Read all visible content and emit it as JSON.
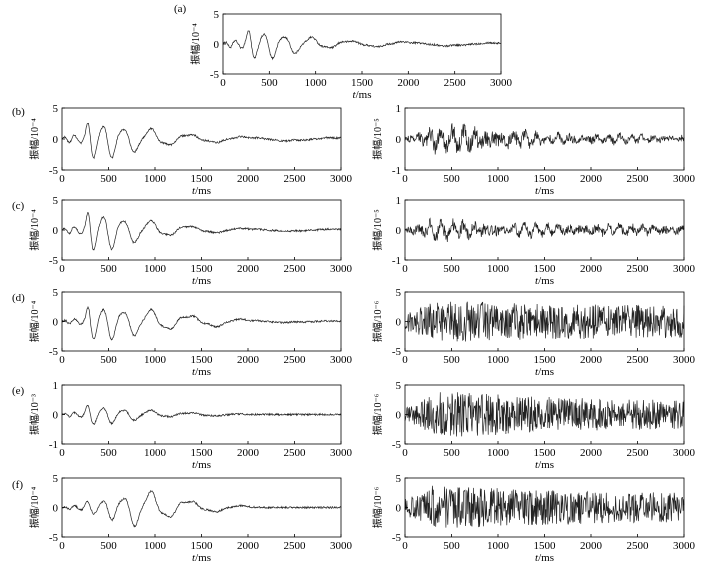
{
  "figure": {
    "panel_labels": [
      "(a)",
      "(b)",
      "(c)",
      "(d)",
      "(e)",
      "(f)"
    ]
  },
  "chart_data": [
    {
      "id": "a",
      "type": "line",
      "panel_label": "(a)",
      "xlabel": "t/ms",
      "ylabel": "振幅/10⁻⁴",
      "xlim": [
        0,
        3000
      ],
      "ylim": [
        -5,
        5
      ],
      "xticks": [
        0,
        500,
        1000,
        1500,
        2000,
        2500,
        3000
      ],
      "yticks": [
        -5,
        0,
        5
      ],
      "series": [
        {
          "signal": "decaying oscillation",
          "x": [
            0,
            250,
            300,
            350,
            400,
            500,
            600,
            700,
            800,
            1000,
            1200,
            1500,
            1800,
            2000,
            2500,
            3000
          ],
          "amplitude": [
            0.2,
            1.5,
            3.2,
            3.0,
            2.8,
            2.5,
            2.3,
            2.0,
            1.6,
            1.2,
            0.9,
            0.6,
            0.45,
            0.4,
            0.35,
            0.3
          ]
        }
      ]
    },
    {
      "id": "b-left",
      "type": "line",
      "panel_label": "(b)",
      "xlabel": "t/ms",
      "ylabel": "振幅/10⁻⁴",
      "xlim": [
        0,
        3000
      ],
      "ylim": [
        -5,
        5
      ],
      "xticks": [
        0,
        500,
        1000,
        1500,
        2000,
        2500,
        3000
      ],
      "yticks": [
        -5,
        0,
        5
      ],
      "series": [
        {
          "signal": "decaying oscillation",
          "x": [
            0,
            250,
            300,
            350,
            400,
            500,
            600,
            700,
            800,
            1000,
            1200,
            1500,
            1800,
            2000,
            2500,
            3000
          ],
          "amplitude": [
            0.2,
            1.5,
            4.0,
            3.8,
            3.5,
            3.2,
            3.0,
            2.6,
            2.2,
            1.8,
            1.3,
            0.8,
            0.5,
            0.4,
            0.35,
            0.3
          ]
        }
      ]
    },
    {
      "id": "b-right",
      "type": "line",
      "panel_label": "",
      "xlabel": "t/ms",
      "ylabel": "振幅/10⁻⁵",
      "xlim": [
        0,
        3000
      ],
      "ylim": [
        -1,
        1
      ],
      "xticks": [
        0,
        500,
        1000,
        1500,
        2000,
        2500,
        3000
      ],
      "yticks": [
        -1,
        0,
        1
      ],
      "series": [
        {
          "signal": "noisy oscillation",
          "x": [
            0,
            200,
            300,
            600,
            1000,
            1500,
            2000,
            2500,
            3000
          ],
          "amplitude": [
            0.15,
            0.3,
            0.45,
            0.5,
            0.4,
            0.25,
            0.2,
            0.18,
            0.15
          ]
        }
      ]
    },
    {
      "id": "c-left",
      "type": "line",
      "panel_label": "(c)",
      "xlabel": "t/ms",
      "ylabel": "振幅/10⁻⁴",
      "xlim": [
        0,
        3000
      ],
      "ylim": [
        -5,
        5
      ],
      "xticks": [
        0,
        500,
        1000,
        1500,
        2000,
        2500,
        3000
      ],
      "yticks": [
        -5,
        0,
        5
      ],
      "series": [
        {
          "signal": "decaying oscillation",
          "x": [
            0,
            250,
            300,
            350,
            400,
            500,
            600,
            700,
            800,
            1000,
            1200,
            1500,
            1800,
            2000,
            2500,
            3000
          ],
          "amplitude": [
            0.2,
            1.5,
            4.5,
            4.2,
            3.8,
            3.4,
            3.0,
            2.6,
            2.2,
            1.7,
            1.2,
            0.7,
            0.4,
            0.3,
            0.25,
            0.25
          ]
        }
      ]
    },
    {
      "id": "c-right",
      "type": "line",
      "panel_label": "",
      "xlabel": "t/ms",
      "ylabel": "振幅/10⁻⁵",
      "xlim": [
        0,
        3000
      ],
      "ylim": [
        -1,
        1
      ],
      "xticks": [
        0,
        500,
        1000,
        1500,
        2000,
        2500,
        3000
      ],
      "yticks": [
        -1,
        0,
        1
      ],
      "series": [
        {
          "signal": "noisy oscillation",
          "x": [
            0,
            200,
            300,
            600,
            1000,
            1500,
            2000,
            2500,
            3000
          ],
          "amplitude": [
            0.15,
            0.3,
            0.4,
            0.35,
            0.3,
            0.25,
            0.25,
            0.25,
            0.2
          ]
        }
      ]
    },
    {
      "id": "d-left",
      "type": "line",
      "panel_label": "(d)",
      "xlabel": "t/ms",
      "ylabel": "振幅/10⁻⁴",
      "xlim": [
        0,
        3000
      ],
      "ylim": [
        -5,
        5
      ],
      "xticks": [
        0,
        500,
        1000,
        1500,
        2000,
        2500,
        3000
      ],
      "yticks": [
        -5,
        0,
        5
      ],
      "series": [
        {
          "signal": "decaying oscillation",
          "x": [
            0,
            250,
            300,
            350,
            400,
            500,
            600,
            700,
            800,
            1000,
            1200,
            1500,
            1800,
            2000,
            2500,
            3000
          ],
          "amplitude": [
            0.1,
            1.0,
            4.0,
            3.8,
            3.5,
            3.2,
            3.0,
            2.8,
            2.5,
            2.2,
            1.8,
            1.2,
            0.8,
            0.3,
            0.15,
            0.15
          ]
        }
      ]
    },
    {
      "id": "d-right",
      "type": "line",
      "panel_label": "",
      "xlabel": "t/ms",
      "ylabel": "振幅/10⁻⁶",
      "xlim": [
        0,
        3000
      ],
      "ylim": [
        -5,
        5
      ],
      "xticks": [
        0,
        500,
        1000,
        1500,
        2000,
        2500,
        3000
      ],
      "yticks": [
        -5,
        0,
        5
      ],
      "series": [
        {
          "signal": "broadband noise",
          "x": [
            0,
            200,
            300,
            600,
            1000,
            1500,
            2000,
            2500,
            3000
          ],
          "amplitude": [
            1.5,
            2.5,
            3.5,
            3.5,
            3.2,
            3.0,
            3.0,
            2.8,
            2.8
          ]
        }
      ]
    },
    {
      "id": "e-left",
      "type": "line",
      "panel_label": "(e)",
      "xlabel": "t/ms",
      "ylabel": "振幅/10⁻³",
      "xlim": [
        0,
        3000
      ],
      "ylim": [
        -1,
        1
      ],
      "xticks": [
        0,
        500,
        1000,
        1500,
        2000,
        2500,
        3000
      ],
      "yticks": [
        -1,
        0,
        1
      ],
      "series": [
        {
          "signal": "decaying oscillation",
          "x": [
            0,
            250,
            300,
            350,
            400,
            500,
            600,
            700,
            800,
            1000,
            1200,
            1500,
            1800,
            2000,
            2500,
            3000
          ],
          "amplitude": [
            0.0,
            0.2,
            0.45,
            0.42,
            0.38,
            0.32,
            0.28,
            0.24,
            0.2,
            0.15,
            0.1,
            0.07,
            0.05,
            0.0,
            0.0,
            0.0
          ]
        }
      ]
    },
    {
      "id": "e-right",
      "type": "line",
      "panel_label": "",
      "xlabel": "t/ms",
      "ylabel": "振幅/10⁻⁶",
      "xlim": [
        0,
        3000
      ],
      "ylim": [
        -5,
        5
      ],
      "xticks": [
        0,
        500,
        1000,
        1500,
        2000,
        2500,
        3000
      ],
      "yticks": [
        -5,
        0,
        5
      ],
      "series": [
        {
          "signal": "broadband noise",
          "x": [
            0,
            200,
            300,
            600,
            1000,
            1500,
            2000,
            2500,
            3000
          ],
          "amplitude": [
            1.5,
            2.5,
            4.0,
            3.8,
            3.5,
            3.0,
            2.8,
            2.6,
            2.5
          ]
        }
      ]
    },
    {
      "id": "f-left",
      "type": "line",
      "panel_label": "(f)",
      "xlabel": "t/ms",
      "ylabel": "振幅/10⁻⁴",
      "xlim": [
        0,
        3000
      ],
      "ylim": [
        -5,
        5
      ],
      "xticks": [
        0,
        500,
        1000,
        1500,
        2000,
        2500,
        3000
      ],
      "yticks": [
        -5,
        0,
        5
      ],
      "series": [
        {
          "signal": "decaying oscillation",
          "x": [
            0,
            300,
            400,
            600,
            800,
            900,
            1000,
            1200,
            1500,
            1800,
            2000,
            2100,
            3000
          ],
          "amplitude": [
            0.0,
            1.2,
            1.6,
            2.4,
            3.5,
            3.2,
            3.0,
            2.2,
            1.2,
            0.5,
            0.3,
            0.0,
            0.0
          ]
        }
      ]
    },
    {
      "id": "f-right",
      "type": "line",
      "panel_label": "",
      "xlabel": "t/ms",
      "ylabel": "振幅/10⁻⁶",
      "xlim": [
        0,
        3000
      ],
      "ylim": [
        -5,
        5
      ],
      "xticks": [
        0,
        500,
        1000,
        1500,
        2000,
        2500,
        3000
      ],
      "yticks": [
        -5,
        0,
        5
      ],
      "series": [
        {
          "signal": "broadband noise",
          "x": [
            0,
            200,
            300,
            600,
            1000,
            1500,
            2000,
            2500,
            3000
          ],
          "amplitude": [
            1.5,
            2.5,
            3.8,
            3.5,
            3.3,
            3.0,
            2.8,
            2.6,
            2.5
          ]
        }
      ]
    }
  ]
}
